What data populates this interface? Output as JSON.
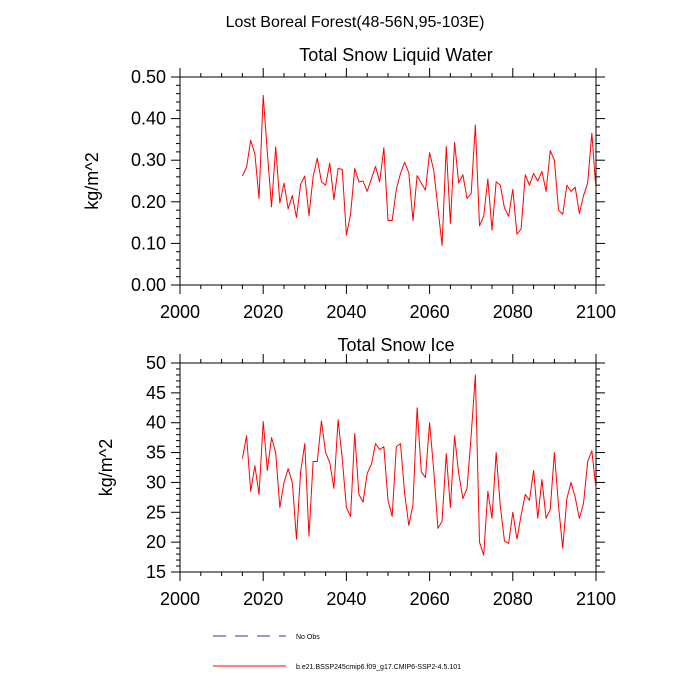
{
  "main_title": "Lost Boreal Forest(48-56N,95-103E)",
  "legend": [
    {
      "label": "No Obs",
      "color": "#3333aa",
      "dash": "dashed"
    },
    {
      "label": "b.e21.BSSP245cmip6.f09_g17.CMIP6-SSP2-4.5.101",
      "color": "#ff0000",
      "dash": "solid"
    }
  ],
  "chart_data": [
    {
      "type": "line",
      "title": "Total Snow Liquid Water",
      "xlabel": "",
      "ylabel": "kg/m^2",
      "xlim": [
        2000,
        2100
      ],
      "ylim": [
        0.0,
        0.5
      ],
      "xticks": [
        2000,
        2020,
        2040,
        2060,
        2080,
        2100
      ],
      "xtick_labels": [
        "2000",
        "2020",
        "2040",
        "2060",
        "2080",
        "2100"
      ],
      "yticks": [
        0.0,
        0.1,
        0.2,
        0.3,
        0.4,
        0.5
      ],
      "ytick_labels": [
        "0.00",
        "0.10",
        "0.20",
        "0.30",
        "0.40",
        "0.50"
      ],
      "series": [
        {
          "name": "b.e21.BSSP245cmip6.f09_g17.CMIP6-SSP2-4.5.101",
          "color": "#ff0000",
          "x_start": 2015,
          "values": [
            0.262,
            0.283,
            0.348,
            0.315,
            0.208,
            0.456,
            0.318,
            0.188,
            0.332,
            0.197,
            0.245,
            0.183,
            0.215,
            0.162,
            0.242,
            0.262,
            0.167,
            0.26,
            0.305,
            0.248,
            0.24,
            0.293,
            0.205,
            0.28,
            0.278,
            0.12,
            0.17,
            0.28,
            0.248,
            0.25,
            0.225,
            0.255,
            0.285,
            0.248,
            0.33,
            0.155,
            0.155,
            0.23,
            0.268,
            0.295,
            0.27,
            0.155,
            0.263,
            0.245,
            0.228,
            0.318,
            0.275,
            0.185,
            0.095,
            0.333,
            0.148,
            0.343,
            0.245,
            0.265,
            0.208,
            0.22,
            0.385,
            0.142,
            0.165,
            0.255,
            0.132,
            0.248,
            0.24,
            0.185,
            0.165,
            0.23,
            0.122,
            0.135,
            0.265,
            0.24,
            0.268,
            0.25,
            0.273,
            0.225,
            0.323,
            0.3,
            0.18,
            0.17,
            0.24,
            0.225,
            0.235,
            0.172,
            0.215,
            0.245,
            0.365,
            0.228
          ]
        }
      ]
    },
    {
      "type": "line",
      "title": "Total Snow Ice",
      "xlabel": "",
      "ylabel": "kg/m^2",
      "xlim": [
        2000,
        2100
      ],
      "ylim": [
        15,
        50
      ],
      "xticks": [
        2000,
        2020,
        2040,
        2060,
        2080,
        2100
      ],
      "xtick_labels": [
        "2000",
        "2020",
        "2040",
        "2060",
        "2080",
        "2100"
      ],
      "yticks": [
        15,
        20,
        25,
        30,
        35,
        40,
        45,
        50
      ],
      "ytick_labels": [
        "15",
        "20",
        "25",
        "30",
        "35",
        "40",
        "45",
        "50"
      ],
      "series": [
        {
          "name": "b.e21.BSSP245cmip6.f09_g17.CMIP6-SSP2-4.5.101",
          "color": "#ff0000",
          "x_start": 2015,
          "values": [
            34.0,
            37.8,
            28.5,
            32.8,
            28.0,
            40.2,
            32.0,
            37.5,
            35.0,
            25.8,
            30.0,
            32.3,
            30.0,
            20.5,
            31.8,
            36.5,
            21.0,
            33.5,
            33.5,
            40.3,
            35.0,
            33.3,
            29.0,
            40.5,
            34.0,
            25.8,
            24.3,
            38.2,
            28.0,
            26.7,
            31.5,
            33.0,
            36.5,
            35.5,
            36.0,
            27.0,
            24.3,
            36.0,
            36.5,
            28.2,
            22.8,
            26.3,
            42.5,
            31.8,
            30.8,
            40.0,
            32.0,
            22.3,
            23.5,
            34.8,
            25.8,
            37.8,
            31.5,
            27.3,
            29.0,
            38.0,
            48.0,
            20.0,
            17.8,
            28.5,
            24.0,
            35.0,
            26.0,
            20.2,
            19.8,
            25.0,
            20.5,
            24.5,
            28.0,
            27.0,
            32.0,
            24.0,
            30.5,
            24.0,
            25.5,
            35.0,
            26.0,
            19.0,
            27.3,
            30.0,
            27.5,
            24.0,
            26.5,
            33.5,
            35.3,
            29.0
          ]
        }
      ]
    }
  ]
}
